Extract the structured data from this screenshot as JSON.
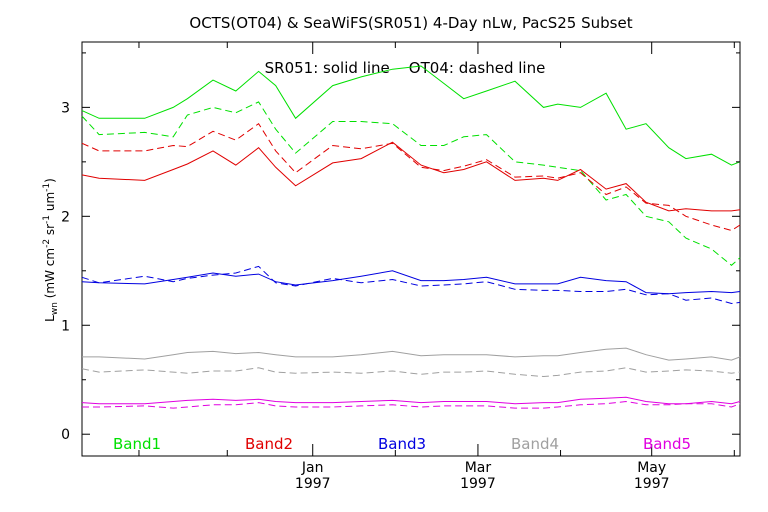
{
  "chart_data": {
    "type": "line",
    "title": "OCTS(OT04) & SeaWiFS(SR051) 4-Day nLw, PacS25 Subset",
    "annotation": "SR051: solid line    OT04: dashed line",
    "ylabel_main": "L",
    "ylabel_sub": "wn",
    "ylabel_rest": " (mW cm",
    "ylabel_exp1": "-2",
    "ylabel_mid": " sr",
    "ylabel_exp2": "-1",
    "ylabel_end": " um",
    "ylabel_exp3": "-1",
    "ylabel_close": ")",
    "ylim": [
      -0.2,
      3.6
    ],
    "yticks": [
      "0",
      "1",
      "2",
      "3"
    ],
    "xticks": [
      {
        "line1": "Jan",
        "line2": "1997",
        "day": 81
      },
      {
        "line1": "Mar",
        "line2": "1997",
        "day": 139
      },
      {
        "line1": "May",
        "line2": "1997",
        "day": 200
      }
    ],
    "x_range_days": [
      0,
      231
    ],
    "minor_tick_days": [
      20,
      51,
      110,
      168,
      229
    ],
    "legend": [
      {
        "label": "Band1",
        "color": "#00e000"
      },
      {
        "label": "Band2",
        "color": "#e00000"
      },
      {
        "label": "Band3",
        "color": "#0000e0"
      },
      {
        "label": "Band4",
        "color": "#a0a0a0"
      },
      {
        "label": "Band5",
        "color": "#e000e0"
      }
    ],
    "colors": {
      "band1": "#00e000",
      "band2": "#e00000",
      "band3": "#0000e0",
      "band4": "#a0a0a0",
      "band5": "#e000e0"
    },
    "grid": false,
    "series": [
      {
        "name": "Band1",
        "style": "solid",
        "color": "#00e000",
        "x": [
          0,
          6,
          22,
          32,
          37,
          46,
          54,
          62,
          68,
          75,
          88,
          98,
          109,
          119,
          127,
          134,
          142,
          152,
          162,
          167,
          175,
          184,
          191,
          198,
          206,
          212,
          221,
          228,
          231
        ],
        "y": [
          2.97,
          2.9,
          2.9,
          3.0,
          3.08,
          3.25,
          3.15,
          3.33,
          3.2,
          2.9,
          3.2,
          3.28,
          3.35,
          3.38,
          3.22,
          3.08,
          3.15,
          3.24,
          3.0,
          3.03,
          3.0,
          3.13,
          2.8,
          2.85,
          2.63,
          2.53,
          2.57,
          2.47,
          2.5
        ]
      },
      {
        "name": "Band1",
        "style": "dashed",
        "color": "#00e000",
        "x": [
          0,
          6,
          22,
          32,
          37,
          46,
          54,
          62,
          68,
          75,
          88,
          98,
          109,
          119,
          127,
          134,
          142,
          152,
          162,
          167,
          175,
          184,
          191,
          198,
          206,
          212,
          221,
          228,
          231
        ],
        "y": [
          2.92,
          2.75,
          2.77,
          2.73,
          2.93,
          3.0,
          2.95,
          3.05,
          2.8,
          2.58,
          2.87,
          2.87,
          2.85,
          2.65,
          2.65,
          2.73,
          2.75,
          2.5,
          2.47,
          2.45,
          2.42,
          2.15,
          2.2,
          2.0,
          1.95,
          1.8,
          1.7,
          1.55,
          1.62
        ]
      },
      {
        "name": "Band2",
        "style": "solid",
        "color": "#e00000",
        "x": [
          0,
          6,
          22,
          32,
          37,
          46,
          54,
          62,
          68,
          75,
          88,
          98,
          109,
          119,
          127,
          134,
          142,
          152,
          162,
          167,
          175,
          184,
          191,
          198,
          206,
          212,
          221,
          228,
          231
        ],
        "y": [
          2.38,
          2.35,
          2.33,
          2.43,
          2.48,
          2.6,
          2.47,
          2.63,
          2.45,
          2.28,
          2.49,
          2.53,
          2.68,
          2.47,
          2.4,
          2.43,
          2.5,
          2.33,
          2.35,
          2.33,
          2.43,
          2.25,
          2.3,
          2.13,
          2.05,
          2.07,
          2.05,
          2.05,
          2.06
        ]
      },
      {
        "name": "Band2",
        "style": "dashed",
        "color": "#e00000",
        "x": [
          0,
          6,
          22,
          32,
          37,
          46,
          54,
          62,
          68,
          75,
          88,
          98,
          109,
          119,
          127,
          134,
          142,
          152,
          162,
          167,
          175,
          184,
          191,
          198,
          206,
          212,
          221,
          228,
          231
        ],
        "y": [
          2.67,
          2.6,
          2.6,
          2.65,
          2.64,
          2.78,
          2.7,
          2.85,
          2.6,
          2.4,
          2.65,
          2.62,
          2.67,
          2.45,
          2.42,
          2.46,
          2.52,
          2.36,
          2.37,
          2.35,
          2.4,
          2.2,
          2.27,
          2.12,
          2.1,
          2.0,
          1.92,
          1.87,
          1.92
        ]
      },
      {
        "name": "Band3",
        "style": "solid",
        "color": "#0000e0",
        "x": [
          0,
          6,
          22,
          32,
          37,
          46,
          54,
          62,
          68,
          75,
          88,
          98,
          109,
          119,
          127,
          134,
          142,
          152,
          162,
          167,
          175,
          184,
          191,
          198,
          206,
          212,
          221,
          228,
          231
        ],
        "y": [
          1.4,
          1.39,
          1.38,
          1.42,
          1.44,
          1.48,
          1.45,
          1.47,
          1.4,
          1.37,
          1.41,
          1.45,
          1.5,
          1.41,
          1.41,
          1.42,
          1.44,
          1.38,
          1.38,
          1.38,
          1.44,
          1.41,
          1.4,
          1.3,
          1.29,
          1.3,
          1.31,
          1.3,
          1.31
        ]
      },
      {
        "name": "Band3",
        "style": "dashed",
        "color": "#0000e0",
        "x": [
          0,
          6,
          22,
          32,
          37,
          46,
          54,
          62,
          68,
          75,
          88,
          98,
          109,
          119,
          127,
          134,
          142,
          152,
          162,
          167,
          175,
          184,
          191,
          198,
          206,
          212,
          221,
          228,
          231
        ],
        "y": [
          1.44,
          1.39,
          1.45,
          1.4,
          1.43,
          1.46,
          1.48,
          1.54,
          1.39,
          1.36,
          1.43,
          1.39,
          1.42,
          1.36,
          1.37,
          1.38,
          1.4,
          1.33,
          1.32,
          1.32,
          1.31,
          1.31,
          1.33,
          1.28,
          1.29,
          1.23,
          1.25,
          1.2,
          1.21
        ]
      },
      {
        "name": "Band4",
        "style": "solid",
        "color": "#a0a0a0",
        "x": [
          0,
          6,
          22,
          32,
          37,
          46,
          54,
          62,
          68,
          75,
          88,
          98,
          109,
          119,
          127,
          134,
          142,
          152,
          162,
          167,
          175,
          184,
          191,
          198,
          206,
          212,
          221,
          228,
          231
        ],
        "y": [
          0.71,
          0.71,
          0.69,
          0.73,
          0.75,
          0.76,
          0.74,
          0.75,
          0.73,
          0.71,
          0.71,
          0.73,
          0.76,
          0.72,
          0.73,
          0.73,
          0.73,
          0.71,
          0.72,
          0.72,
          0.75,
          0.78,
          0.79,
          0.73,
          0.68,
          0.69,
          0.71,
          0.68,
          0.71
        ]
      },
      {
        "name": "Band4",
        "style": "dashed",
        "color": "#a0a0a0",
        "x": [
          0,
          6,
          22,
          32,
          37,
          46,
          54,
          62,
          68,
          75,
          88,
          98,
          109,
          119,
          127,
          134,
          142,
          152,
          162,
          167,
          175,
          184,
          191,
          198,
          206,
          212,
          221,
          228,
          231
        ],
        "y": [
          0.6,
          0.57,
          0.59,
          0.57,
          0.56,
          0.58,
          0.58,
          0.61,
          0.57,
          0.56,
          0.57,
          0.56,
          0.58,
          0.55,
          0.57,
          0.57,
          0.58,
          0.55,
          0.53,
          0.54,
          0.57,
          0.58,
          0.61,
          0.57,
          0.58,
          0.59,
          0.58,
          0.56,
          0.57
        ]
      },
      {
        "name": "Band5",
        "style": "solid",
        "color": "#e000e0",
        "x": [
          0,
          6,
          22,
          32,
          37,
          46,
          54,
          62,
          68,
          75,
          88,
          98,
          109,
          119,
          127,
          134,
          142,
          152,
          162,
          167,
          175,
          184,
          191,
          198,
          206,
          212,
          221,
          228,
          231
        ],
        "y": [
          0.29,
          0.28,
          0.28,
          0.3,
          0.31,
          0.32,
          0.31,
          0.32,
          0.3,
          0.29,
          0.29,
          0.3,
          0.31,
          0.29,
          0.3,
          0.3,
          0.3,
          0.28,
          0.29,
          0.29,
          0.32,
          0.33,
          0.34,
          0.3,
          0.28,
          0.28,
          0.3,
          0.28,
          0.3
        ]
      },
      {
        "name": "Band5",
        "style": "dashed",
        "color": "#e000e0",
        "x": [
          0,
          6,
          22,
          32,
          37,
          46,
          54,
          62,
          68,
          75,
          88,
          98,
          109,
          119,
          127,
          134,
          142,
          152,
          162,
          167,
          175,
          184,
          191,
          198,
          206,
          212,
          221,
          228,
          231
        ],
        "y": [
          0.25,
          0.25,
          0.26,
          0.24,
          0.25,
          0.27,
          0.27,
          0.29,
          0.26,
          0.25,
          0.25,
          0.26,
          0.27,
          0.25,
          0.26,
          0.26,
          0.26,
          0.24,
          0.24,
          0.25,
          0.27,
          0.28,
          0.3,
          0.27,
          0.27,
          0.28,
          0.28,
          0.25,
          0.28
        ]
      }
    ]
  }
}
